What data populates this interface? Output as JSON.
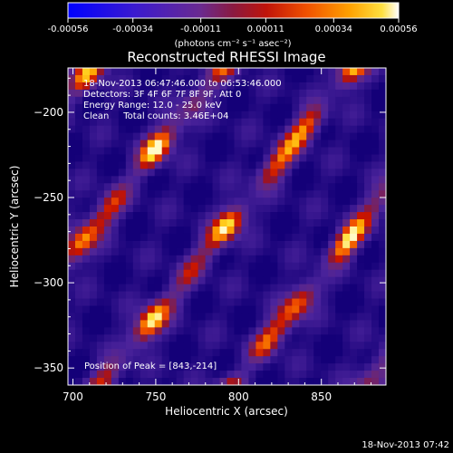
{
  "colorbar": {
    "tick_labels": [
      "-0.00056",
      "-0.00034",
      "-0.00011",
      "0.00011",
      "0.00034",
      "0.00056"
    ],
    "units": "(photons cm⁻² s⁻¹ asec⁻²)"
  },
  "chart_data": {
    "type": "heatmap",
    "title": "Reconstructed RHESSI Image",
    "xlabel": "Heliocentric X (arcsec)",
    "ylabel": "Heliocentric Y (arcsec)",
    "xlim": [
      697,
      889
    ],
    "ylim": [
      -360,
      -174
    ],
    "x_ticks": [
      700,
      750,
      800,
      850
    ],
    "y_ticks": [
      -200,
      -250,
      -300,
      -350
    ],
    "color_range": [
      -0.00056,
      0.00056
    ],
    "colormap": "blue-purple-red-orange-yellow-white",
    "info_lines": [
      "18-Nov-2013 06:47:46.000 to 06:53:46.000",
      "Detectors: 3F 4F 6F 7F 8F 9F, Att 0",
      "Energy Range: 12.0 - 25.0 keV",
      "Clean     Total counts: 3.46E+04"
    ],
    "peak_label": "Position of Peak = [843,-214]",
    "peak": [
      843,
      -214
    ]
  },
  "footer": {
    "timestamp": "18-Nov-2013 07:42"
  }
}
